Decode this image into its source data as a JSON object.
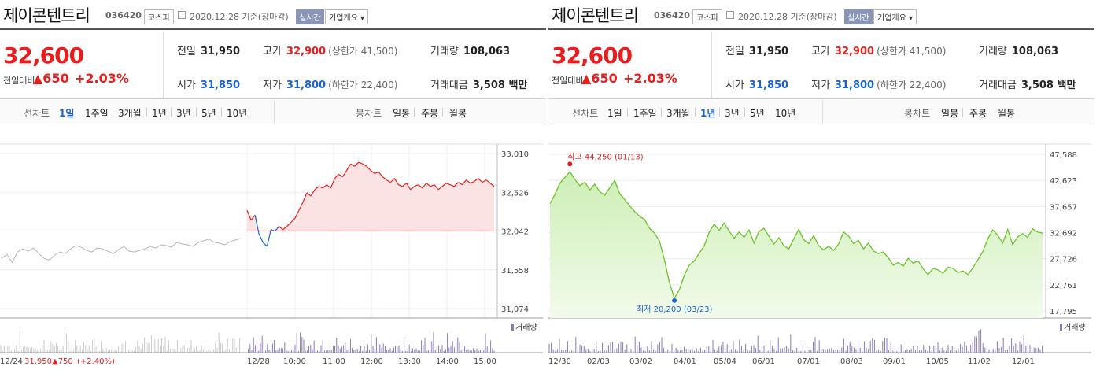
{
  "stock": {
    "name": "제이콘텐트리",
    "code": "036420",
    "market": "코스피",
    "date_text": "2020.12.28  기준(장마감)",
    "realtime_label": "실시간",
    "company_label": "기업개요 ▾"
  },
  "quote": {
    "price": "32,600",
    "change_label": "전일대비",
    "change": "▲650",
    "change_pct": "+2.03%",
    "prev_label": "전일",
    "prev": "31,950",
    "high_label": "고가",
    "high": "32,900",
    "upper_limit": "(상한가 41,500)",
    "volume_label": "거래량",
    "volume": "108,063",
    "open_label": "시가",
    "open": "31,850",
    "low_label": "저가",
    "low": "31,800",
    "lower_limit": "(하한가 22,400)",
    "amount_label": "거래대금",
    "amount": "3,508 백만"
  },
  "tabs": {
    "line": "선차트",
    "periods": [
      "1일",
      "1주일",
      "3개월",
      "1년",
      "3년",
      "5년",
      "10년"
    ],
    "candle": "봉차트",
    "candle_periods": [
      "일봉",
      "주봉",
      "월봉"
    ]
  },
  "colors": {
    "up": "#e61e1e",
    "down": "#1a62cc",
    "green": "#6cc22a",
    "gray": "#b5b5b5",
    "volume": "#8878b8"
  },
  "chart_data": [
    {
      "type": "line",
      "selected_period": "1일",
      "y_ticks": [
        "33,010",
        "32,526",
        "32,042",
        "31,558",
        "31,074"
      ],
      "ylim": [
        31074,
        33010
      ],
      "x_ticks": [
        "12/28",
        "10:00",
        "11:00",
        "12:00",
        "13:00",
        "14:00",
        "15:00"
      ],
      "prev_close": 32042,
      "volume_label": "거래량",
      "prev_day_summary": {
        "date": "12/24",
        "close": "31,950",
        "change": "▲750",
        "pct": "(+2.40%)"
      },
      "series": [
        {
          "values": [
            31700,
            31750,
            31650,
            31780,
            31820,
            31790,
            31830,
            31760,
            31700,
            31680,
            31740,
            31780,
            31760,
            31820,
            31860,
            31840,
            31800,
            31780,
            31830,
            31820,
            31790,
            31760,
            31810,
            31850,
            31790,
            31780,
            31800,
            31820,
            31850,
            31830,
            31870,
            31860,
            31840,
            31900,
            31880,
            31870,
            31850,
            31900,
            31920,
            31940,
            31900,
            31890,
            31870,
            31910,
            31930,
            31950
          ]
        },
        {
          "values": [
            32300,
            32180,
            32240,
            32000,
            31900,
            31850,
            32060,
            32040,
            32100,
            32060,
            32100,
            32150,
            32200,
            32300,
            32400,
            32520,
            32480,
            32560,
            32600,
            32580,
            32620,
            32580,
            32700,
            32750,
            32720,
            32800,
            32880,
            32850,
            32900,
            32880,
            32850,
            32800,
            32760,
            32780,
            32720,
            32680,
            32650,
            32700,
            32620,
            32600,
            32640,
            32560,
            32600,
            32620,
            32580,
            32640,
            32600,
            32620,
            32560,
            32600,
            32640,
            32620,
            32600,
            32650,
            32620,
            32680,
            32640,
            32660,
            32700,
            32650,
            32680,
            32640,
            32600
          ]
        }
      ]
    },
    {
      "type": "area",
      "selected_period": "1년",
      "y_ticks": [
        "47,588",
        "42,623",
        "37,657",
        "32,692",
        "27,726",
        "22,761",
        "17,795"
      ],
      "ylim": [
        17795,
        47588
      ],
      "x_ticks": [
        "12/30",
        "02/03",
        "03/02",
        "04/01",
        "05/04",
        "06/01",
        "07/01",
        "08/03",
        "09/01",
        "10/05",
        "11/02",
        "12/01"
      ],
      "max_label": "최고 44,250 (01/13)",
      "min_label": "최저 20,200 (03/23)",
      "volume_label": "거래량",
      "values": [
        38200,
        40000,
        42100,
        43200,
        44250,
        42800,
        41600,
        42300,
        40800,
        41900,
        40500,
        39800,
        41200,
        42600,
        40100,
        39000,
        37800,
        36700,
        35800,
        35200,
        33500,
        32600,
        31100,
        27500,
        23200,
        20200,
        21800,
        24600,
        26500,
        27300,
        28800,
        30200,
        32800,
        34300,
        33100,
        34500,
        33000,
        31600,
        32800,
        31800,
        33200,
        30700,
        32900,
        33500,
        32000,
        30500,
        31700,
        30200,
        29600,
        31500,
        33300,
        31300,
        30600,
        32100,
        30200,
        29400,
        30100,
        29300,
        30500,
        32800,
        32100,
        30600,
        31200,
        29600,
        30700,
        29200,
        28700,
        29000,
        27900,
        26500,
        27000,
        26300,
        27800,
        26900,
        27300,
        25800,
        24700,
        25900,
        25600,
        25000,
        26100,
        25900,
        25100,
        25400,
        24700,
        26000,
        27500,
        29100,
        31500,
        33200,
        32200,
        30700,
        33300,
        30400,
        31900,
        32500,
        31800,
        33400,
        32800,
        32600
      ]
    }
  ]
}
